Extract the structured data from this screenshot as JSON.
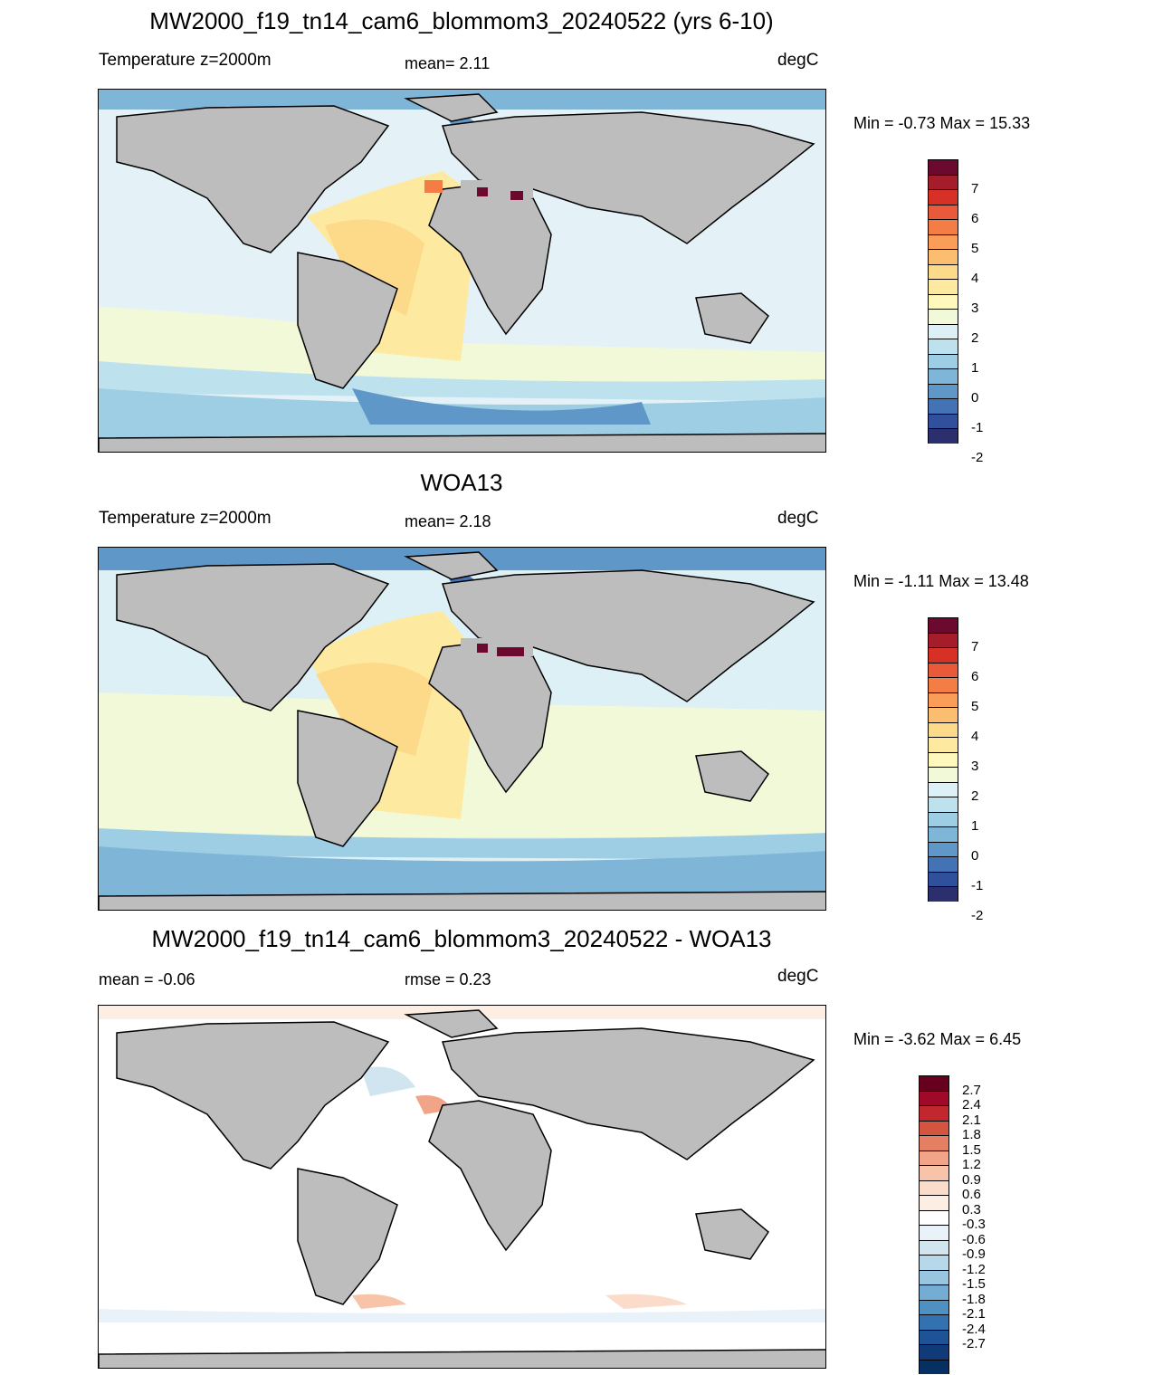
{
  "panels": [
    {
      "title": "MW2000_f19_tn14_cam6_blommom3_20240522 (yrs 6-10)",
      "left_label": "Temperature z=2000m",
      "center_label": "mean=   2.11",
      "right_label": "degC",
      "minmax": "Min =  -0.73 Max =  15.33"
    },
    {
      "title": "WOA13",
      "left_label": "Temperature z=2000m",
      "center_label": "mean=   2.18",
      "right_label": "degC",
      "minmax": "Min =  -1.11 Max =  13.48"
    },
    {
      "title": "MW2000_f19_tn14_cam6_blommom3_20240522 - WOA13",
      "left_label": "mean =  -0.06",
      "center_label": "rmse =   0.23",
      "right_label": "degC",
      "minmax": "Min =  -3.62 Max =   6.45"
    }
  ],
  "colorbar_abs": {
    "colors": [
      "#6b0a2e",
      "#a51c2b",
      "#d73027",
      "#ea5a3a",
      "#f47c45",
      "#f99d59",
      "#fbbd6f",
      "#fdd98a",
      "#fee9a0",
      "#fff8bd",
      "#f1f9d9",
      "#ddf0f6",
      "#bde2ee",
      "#9dcee4",
      "#7fb5d7",
      "#5f97c8",
      "#4373b5",
      "#31509b",
      "#2c2f6e"
    ],
    "labels": [
      "7",
      "6",
      "5",
      "4",
      "3",
      "2",
      "1",
      "0",
      "-1",
      "-2"
    ]
  },
  "colorbar_diff": {
    "colors": [
      "#67001f",
      "#9e0a28",
      "#c0282e",
      "#d4553f",
      "#e47f63",
      "#f1a487",
      "#f7c4aa",
      "#fbdccb",
      "#fdeee4",
      "#ffffff",
      "#e9f2f8",
      "#d1e5f0",
      "#b7d8ea",
      "#98c6e0",
      "#74acd3",
      "#4e90c2",
      "#3272b0",
      "#1e5497",
      "#103a78",
      "#053061"
    ],
    "labels": [
      "2.7",
      "2.4",
      "2.1",
      "1.8",
      "1.5",
      "1.2",
      "0.9",
      "0.6",
      "0.3",
      "-0.3",
      "-0.6",
      "-0.9",
      "-1.2",
      "-1.5",
      "-1.8",
      "-2.1",
      "-2.4",
      "-2.7"
    ]
  }
}
